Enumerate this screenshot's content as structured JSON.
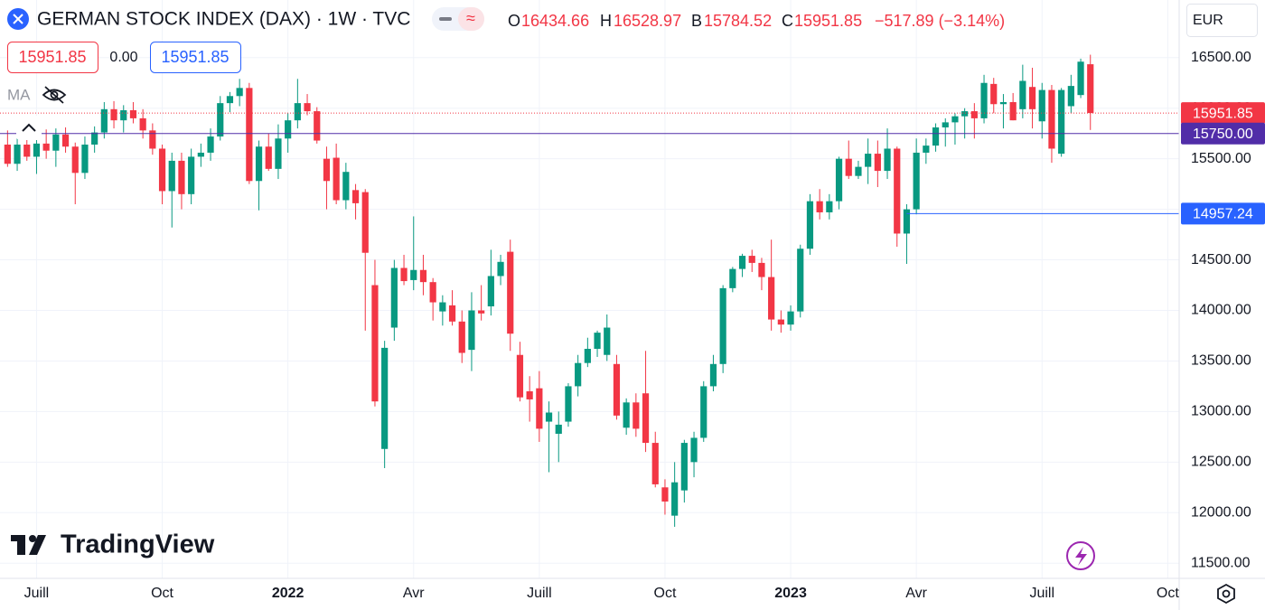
{
  "header": {
    "symbol": "GERMAN STOCK INDEX (DAX) · 1W · TVC",
    "ohlc": [
      {
        "key": "O",
        "value": "16434.66"
      },
      {
        "key": "H",
        "value": "16528.97"
      },
      {
        "key": "B",
        "value": "15784.52"
      },
      {
        "key": "C",
        "value": "15951.85"
      }
    ],
    "change": "−517.89 (−3.14%)"
  },
  "toolbar": {
    "sell": "15951.85",
    "spread": "0.00",
    "buy": "15951.85",
    "indicator": "MA"
  },
  "currency": "EUR",
  "logo": "TradingView",
  "chart_data": {
    "type": "candlestick",
    "up_color": "#089981",
    "down_color": "#f23645",
    "grid": true,
    "categories": [
      null,
      null,
      null,
      "Juill",
      null,
      null,
      null,
      null,
      null,
      null,
      null,
      null,
      null,
      null,
      null,
      null,
      "Oct",
      null,
      null,
      null,
      null,
      null,
      null,
      null,
      null,
      null,
      null,
      null,
      null,
      "2022",
      null,
      null,
      null,
      null,
      null,
      null,
      null,
      null,
      null,
      null,
      null,
      null,
      "Avr",
      null,
      null,
      null,
      null,
      null,
      null,
      null,
      null,
      null,
      null,
      null,
      null,
      "Juill",
      null,
      null,
      null,
      null,
      null,
      null,
      null,
      null,
      null,
      null,
      null,
      null,
      "Oct",
      null,
      null,
      null,
      null,
      null,
      null,
      null,
      null,
      null,
      null,
      null,
      null,
      "2023",
      null,
      null,
      null,
      null,
      null,
      null,
      null,
      null,
      null,
      null,
      null,
      null,
      "Avr",
      null,
      null,
      null,
      null,
      null,
      null,
      null,
      null,
      null,
      null,
      null,
      null,
      "Juill",
      null,
      null,
      null,
      null,
      null,
      null,
      null,
      null,
      null,
      null,
      null,
      null,
      "Oct",
      null,
      null
    ],
    "open": [
      15640,
      15450,
      15640,
      15520,
      15650,
      15580,
      15740,
      15620,
      15360,
      15640,
      15760,
      15990,
      15880,
      15980,
      15900,
      15780,
      15600,
      15180,
      15480,
      15150,
      15520,
      15560,
      15720,
      16050,
      16120,
      16200,
      15280,
      15620,
      15400,
      15700,
      15880,
      16050,
      15970,
      15500,
      15510,
      15090,
      15190,
      15170,
      14250,
      12630,
      13830,
      14420,
      14300,
      14400,
      14280,
      13990,
      14050,
      13890,
      13610,
      14000,
      14040,
      14340,
      14580,
      13560,
      13200,
      13230,
      12900,
      12780,
      12900,
      13250,
      13480,
      13620,
      13560,
      13470,
      12840,
      13090,
      13180,
      12690,
      12250,
      11970,
      12220,
      12500,
      12740,
      13250,
      13470,
      14220,
      14410,
      14540,
      14470,
      14330,
      13910,
      13860,
      13990,
      14610,
      15080,
      14970,
      15080,
      15500,
      15330,
      15420,
      15550,
      15380,
      15600,
      14760,
      15000,
      15560,
      15630,
      15810,
      15860,
      15920,
      15970,
      15900,
      16240,
      16040,
      16060,
      15990,
      16210,
      15870,
      16180,
      15550,
      16020,
      16130,
      16434.66,
      null,
      null,
      null,
      null,
      null,
      null,
      null,
      null,
      null,
      null
    ],
    "high": [
      15780,
      15700,
      15720,
      15700,
      15790,
      15800,
      15810,
      15660,
      15720,
      15820,
      16060,
      16070,
      16030,
      16060,
      15990,
      15850,
      15640,
      15560,
      15560,
      15600,
      15650,
      15800,
      16120,
      16160,
      16290,
      16250,
      15680,
      15750,
      15840,
      15950,
      16290,
      16140,
      16010,
      15620,
      15650,
      15460,
      15250,
      15200,
      14500,
      13700,
      14500,
      14550,
      14930,
      14550,
      14320,
      14150,
      14200,
      14000,
      14180,
      14250,
      14600,
      14550,
      14700,
      13690,
      13350,
      13400,
      13100,
      13000,
      13280,
      13560,
      13730,
      13800,
      13960,
      13560,
      13130,
      13180,
      13600,
      12800,
      12330,
      12500,
      12720,
      12800,
      13300,
      13560,
      14250,
      14430,
      14560,
      14600,
      14520,
      14700,
      14000,
      14050,
      14650,
      15150,
      15200,
      15150,
      15520,
      15680,
      15480,
      15700,
      15680,
      15800,
      15620,
      15050,
      15700,
      15700,
      15850,
      15900,
      15950,
      16000,
      16050,
      16330,
      16300,
      16140,
      16150,
      16430,
      16400,
      16250,
      16230,
      16200,
      16330,
      16490,
      16528.97,
      null,
      null,
      null,
      null,
      null,
      null,
      null,
      null,
      null,
      null
    ],
    "low": [
      15420,
      15380,
      15480,
      15350,
      15500,
      15420,
      15560,
      15050,
      15300,
      15560,
      15700,
      15800,
      15760,
      15850,
      15700,
      15540,
      15050,
      14820,
      15000,
      15050,
      15420,
      15480,
      15680,
      15960,
      16020,
      15250,
      14990,
      15380,
      15300,
      15560,
      15800,
      15930,
      15650,
      15000,
      15050,
      15000,
      14900,
      13800,
      13050,
      12440,
      13700,
      14250,
      14200,
      14150,
      13900,
      13850,
      13850,
      13480,
      13400,
      13900,
      13950,
      14250,
      13600,
      13100,
      12900,
      12700,
      12400,
      12500,
      12850,
      13150,
      13440,
      13540,
      13500,
      12920,
      12770,
      12750,
      12600,
      12250,
      11980,
      11860,
      12100,
      12350,
      12700,
      13200,
      13380,
      14180,
      14330,
      14380,
      14200,
      13800,
      13780,
      13800,
      13930,
      14550,
      14900,
      14900,
      15000,
      15300,
      15300,
      15250,
      15220,
      15300,
      14630,
      14460,
      14950,
      15450,
      15570,
      15620,
      15640,
      15700,
      15700,
      15850,
      15950,
      15800,
      15880,
      15900,
      15800,
      15700,
      15460,
      15520,
      15950,
      16100,
      15784.52,
      null,
      null,
      null,
      null,
      null,
      null,
      null,
      null,
      null,
      null
    ],
    "close": [
      15450,
      15640,
      15520,
      15650,
      15580,
      15740,
      15620,
      15360,
      15640,
      15760,
      15990,
      15880,
      15980,
      15900,
      15780,
      15600,
      15180,
      15480,
      15150,
      15520,
      15560,
      15720,
      16050,
      16120,
      16200,
      15280,
      15620,
      15400,
      15700,
      15880,
      16050,
      15970,
      15680,
      15280,
      15090,
      15370,
      15060,
      14570,
      13100,
      13630,
      14420,
      14290,
      14400,
      14280,
      14080,
      14080,
      13890,
      13580,
      14000,
      13970,
      14340,
      14480,
      13770,
      13140,
      13120,
      12830,
      12990,
      12870,
      13250,
      13480,
      13620,
      13780,
      13830,
      12960,
      13090,
      12830,
      12690,
      12280,
      12110,
      12300,
      12690,
      12740,
      13250,
      13470,
      14220,
      14410,
      14540,
      14470,
      14330,
      13910,
      13860,
      13990,
      14610,
      15080,
      14970,
      15080,
      15500,
      15330,
      15420,
      15550,
      15380,
      15600,
      14760,
      15000,
      15560,
      15630,
      15810,
      15860,
      15920,
      15970,
      15900,
      16250,
      16040,
      16060,
      15880,
      16270,
      15990,
      16180,
      15600,
      16180,
      16220,
      16460,
      15951.85,
      null,
      null,
      null,
      null,
      null,
      null,
      null,
      null,
      null,
      null
    ],
    "ylim": [
      11350,
      17070
    ],
    "yticks": [
      {
        "value": 11500,
        "label": "11500.00"
      },
      {
        "value": 12000,
        "label": "12000.00"
      },
      {
        "value": 12500,
        "label": "12500.00"
      },
      {
        "value": 13000,
        "label": "13000.00"
      },
      {
        "value": 13500,
        "label": "13500.00"
      },
      {
        "value": 14000,
        "label": "14000.00"
      },
      {
        "value": 14500,
        "label": "14500.00"
      },
      {
        "value": 15000,
        "label": "15000.00"
      },
      {
        "value": 15500,
        "label": "15500.00"
      },
      {
        "value": 16000,
        "label": "16000.00"
      },
      {
        "value": 16500,
        "label": "16500.00"
      }
    ],
    "price_lines": [
      {
        "value": 15951.85,
        "label": "15951.85",
        "color": "#f23645",
        "style": "dotted"
      },
      {
        "value": 15750,
        "label": "15750.00",
        "color": "#512da8",
        "style": "solid"
      },
      {
        "value": 14957.24,
        "label": "14957.24",
        "color": "#2962ff",
        "style": "solid"
      }
    ]
  }
}
